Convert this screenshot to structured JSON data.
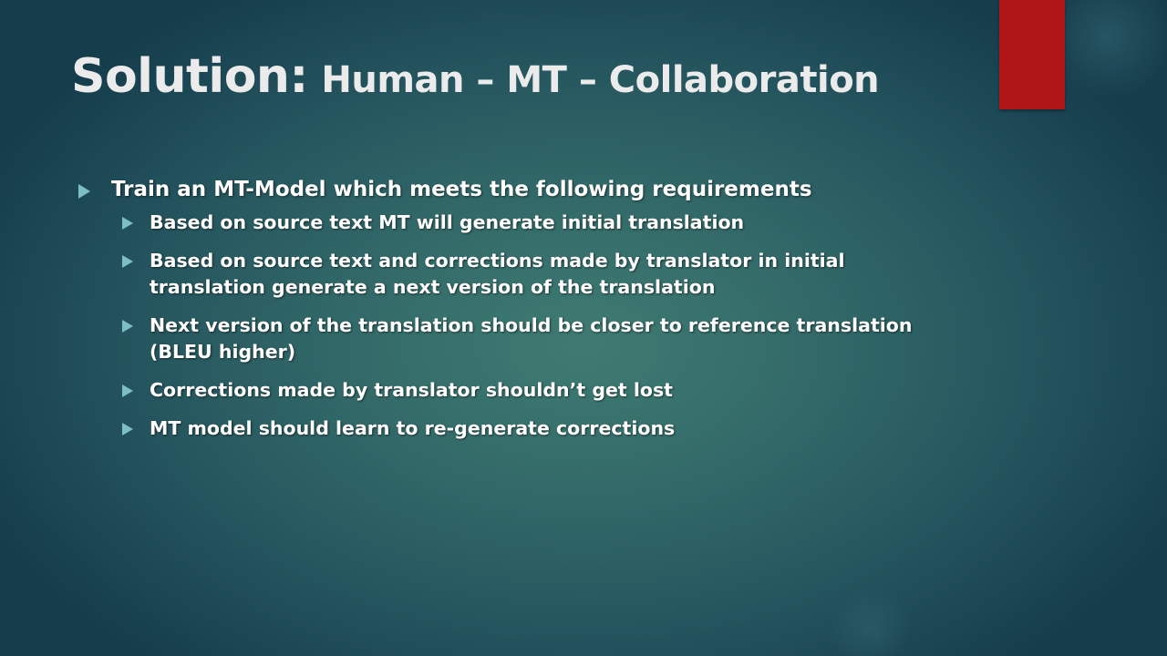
{
  "slide": {
    "title_main": "Solution:",
    "title_sub": "Human – MT – Collaboration",
    "bullet_l1": "Train an MT-Model which meets the  following requirements",
    "bullets_l2": [
      "Based on source text MT will generate initial translation",
      "Based on source text and corrections made by translator in initial translation generate a next version of the translation",
      "Next version of the translation should be closer to reference translation (BLEU higher)",
      "Corrections made by translator shouldn’t get lost",
      "MT model should learn to re-generate corrections"
    ]
  },
  "colors": {
    "accent_bar": "#b01616",
    "bullet": "#7dbfc4",
    "title_text": "#ebebeb",
    "body_text": "#ffffff",
    "background_center": "#3f7b72",
    "background_edge": "#163d4c"
  },
  "icons": {
    "bullet": "triangle-bullet-icon"
  }
}
